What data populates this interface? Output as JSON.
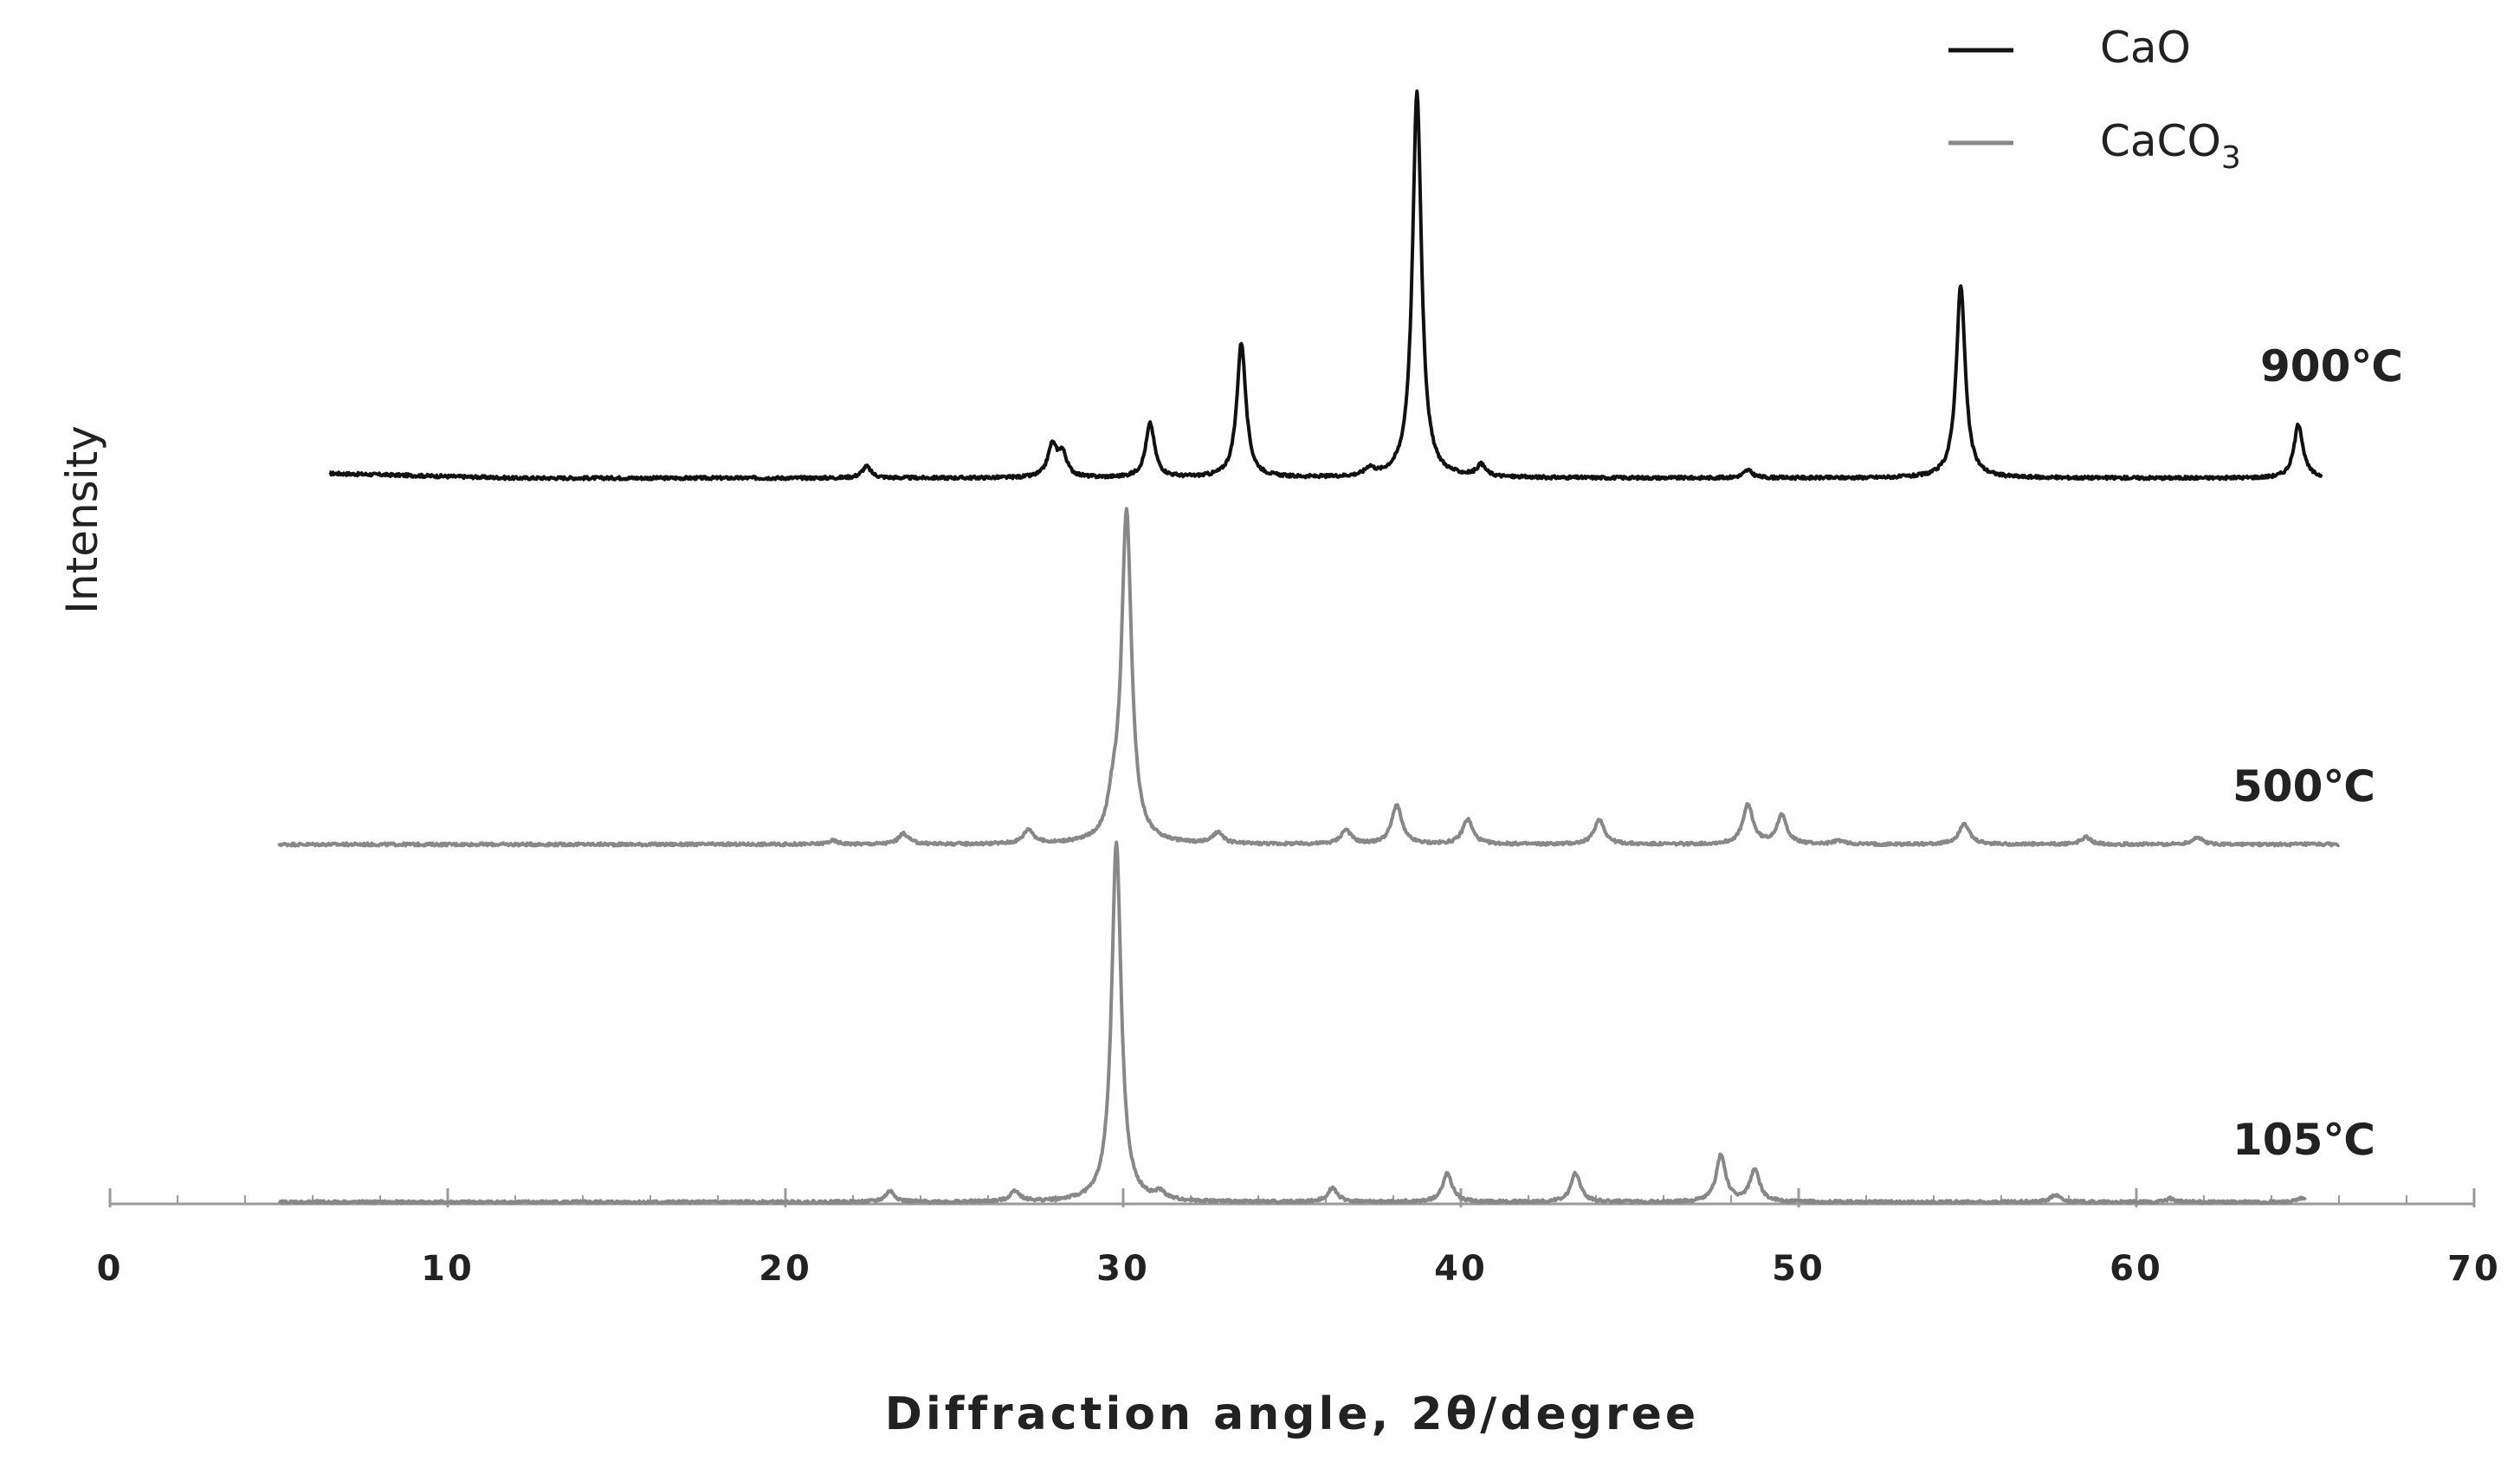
{
  "chart_data": {
    "type": "line",
    "xlabel": "Diffraction angle, 2θ/degree",
    "ylabel": "Intensity",
    "xlim": [
      0,
      70
    ],
    "x_ticks": [
      0,
      10,
      20,
      30,
      40,
      50,
      60,
      70
    ],
    "legend": [
      {
        "label": "CaO",
        "color": "#111111"
      },
      {
        "label": "CaCO",
        "subscript": "3",
        "color": "#888888"
      }
    ],
    "legend_position": "top-right",
    "y_ticks_shown": false,
    "series": [
      {
        "name": "900℃",
        "color": "#111111",
        "x_range": [
          6.5,
          65.5
        ],
        "peaks": [
          {
            "x": 22.4,
            "h": 0.03
          },
          {
            "x": 27.9,
            "h": 0.08
          },
          {
            "x": 28.2,
            "h": 0.06
          },
          {
            "x": 30.8,
            "h": 0.14
          },
          {
            "x": 33.5,
            "h": 0.35
          },
          {
            "x": 37.3,
            "h": 0.02
          },
          {
            "x": 38.7,
            "h": 1.0
          },
          {
            "x": 40.6,
            "h": 0.03
          },
          {
            "x": 48.5,
            "h": 0.02
          },
          {
            "x": 54.8,
            "h": 0.5
          },
          {
            "x": 64.8,
            "h": 0.14
          }
        ]
      },
      {
        "name": "500℃",
        "color": "#888888",
        "x_range": [
          5.0,
          66.0
        ],
        "peaks": [
          {
            "x": 21.4,
            "h": 0.01
          },
          {
            "x": 23.5,
            "h": 0.03
          },
          {
            "x": 27.2,
            "h": 0.04
          },
          {
            "x": 29.7,
            "h": 0.08
          },
          {
            "x": 30.1,
            "h": 0.93
          },
          {
            "x": 32.8,
            "h": 0.03
          },
          {
            "x": 36.6,
            "h": 0.04
          },
          {
            "x": 38.1,
            "h": 0.11
          },
          {
            "x": 40.2,
            "h": 0.07
          },
          {
            "x": 44.1,
            "h": 0.07
          },
          {
            "x": 48.5,
            "h": 0.11
          },
          {
            "x": 49.5,
            "h": 0.08
          },
          {
            "x": 51.2,
            "h": 0.01
          },
          {
            "x": 54.9,
            "h": 0.06
          },
          {
            "x": 58.5,
            "h": 0.02
          },
          {
            "x": 61.8,
            "h": 0.02
          }
        ]
      },
      {
        "name": "105℃",
        "color": "#888888",
        "x_range": [
          5.0,
          65.0
        ],
        "peaks": [
          {
            "x": 23.1,
            "h": 0.03
          },
          {
            "x": 26.8,
            "h": 0.03
          },
          {
            "x": 29.8,
            "h": 1.0
          },
          {
            "x": 31.1,
            "h": 0.02
          },
          {
            "x": 36.2,
            "h": 0.04
          },
          {
            "x": 39.6,
            "h": 0.08
          },
          {
            "x": 43.4,
            "h": 0.08
          },
          {
            "x": 47.7,
            "h": 0.13
          },
          {
            "x": 48.7,
            "h": 0.09
          },
          {
            "x": 57.6,
            "h": 0.02
          },
          {
            "x": 61.0,
            "h": 0.01
          },
          {
            "x": 64.9,
            "h": 0.01
          }
        ]
      }
    ]
  }
}
